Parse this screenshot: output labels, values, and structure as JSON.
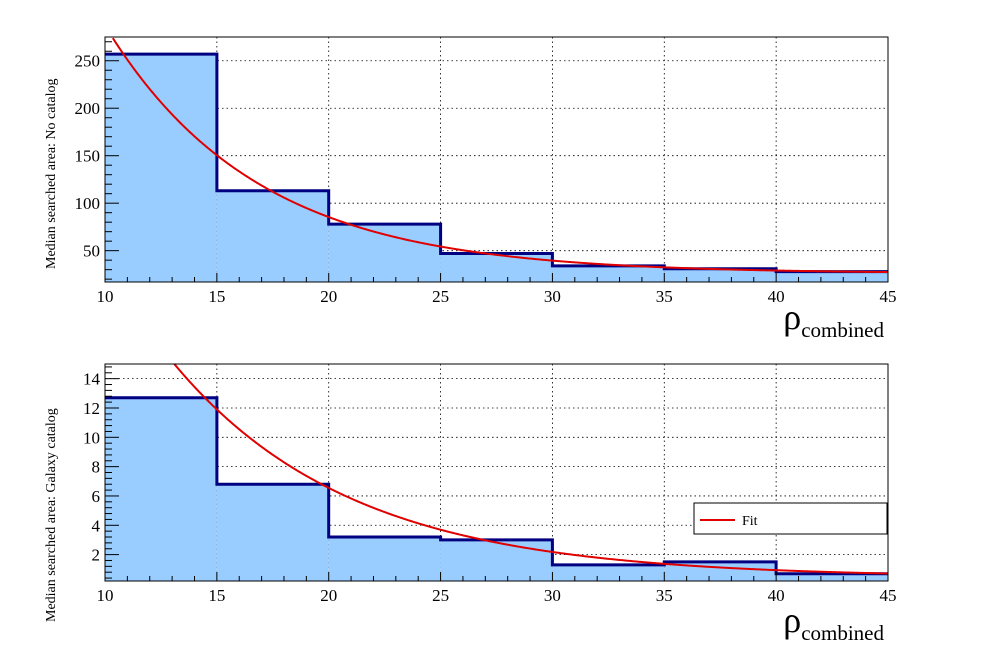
{
  "chart_data": [
    {
      "type": "bar",
      "subtype": "histogram-with-fit",
      "ylabel": "Median searched area: No catalog",
      "xlabel": {
        "symbol": "ρ",
        "subscript": "combined"
      },
      "xlim": [
        10,
        45
      ],
      "ylim": [
        17,
        275
      ],
      "x_ticks": [
        "10",
        "15",
        "20",
        "25",
        "30",
        "35",
        "40",
        "45"
      ],
      "y_ticks": [
        "50",
        "100",
        "150",
        "200",
        "250"
      ],
      "bins": [
        [
          10,
          15
        ],
        [
          15,
          20
        ],
        [
          20,
          25
        ],
        [
          25,
          30
        ],
        [
          30,
          35
        ],
        [
          35,
          40
        ],
        [
          40,
          45
        ]
      ],
      "values": [
        257,
        113,
        78,
        47,
        34,
        31,
        28
      ],
      "fit": {
        "name": "Fit",
        "model": "c + a*exp(-b*(x-10))",
        "a": 261.0,
        "b": 0.148,
        "c": 26.0
      },
      "grid": true,
      "colors": {
        "fill": "#99ccff",
        "edge": "#000080",
        "fit": "#e00000"
      }
    },
    {
      "type": "bar",
      "subtype": "histogram-with-fit",
      "ylabel": "Median searched area: Galaxy catalog",
      "xlabel": {
        "symbol": "ρ",
        "subscript": "combined"
      },
      "xlim": [
        10,
        45
      ],
      "ylim": [
        0.2,
        15
      ],
      "x_ticks": [
        "10",
        "15",
        "20",
        "25",
        "30",
        "35",
        "40",
        "45"
      ],
      "y_ticks": [
        "2",
        "4",
        "6",
        "8",
        "10",
        "12",
        "14"
      ],
      "bins": [
        [
          10,
          15
        ],
        [
          15,
          20
        ],
        [
          20,
          25
        ],
        [
          25,
          30
        ],
        [
          30,
          35
        ],
        [
          35,
          40
        ],
        [
          40,
          45
        ]
      ],
      "values": [
        12.7,
        6.8,
        3.2,
        3.0,
        1.3,
        1.5,
        0.7
      ],
      "fit": {
        "name": "Fit",
        "model": "c + a*exp(-b*(x-10))",
        "a": 21.5,
        "b": 0.126,
        "c": 0.45
      },
      "legend": {
        "entries": [
          "Fit"
        ],
        "placement": "right-middle"
      },
      "grid": true,
      "colors": {
        "fill": "#99ccff",
        "edge": "#000080",
        "fit": "#e00000"
      }
    }
  ]
}
